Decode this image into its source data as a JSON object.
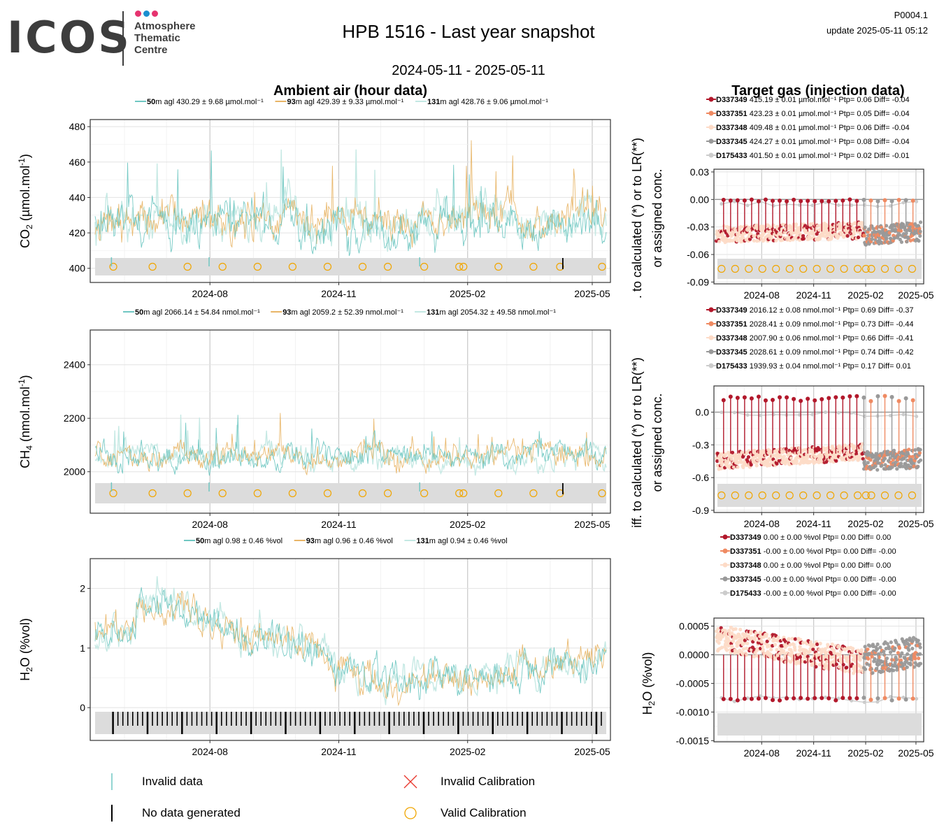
{
  "header": {
    "logo": "ICOS",
    "logo_sub": [
      "Atmosphere",
      "Thematic",
      "Centre"
    ],
    "logo_dot_colors": [
      "#e6336f",
      "#1b8fd0",
      "#e6336f"
    ],
    "title": "HPB 1516 - Last year snapshot",
    "date_range": "2024-05-11 - 2025-05-11",
    "code": "P0004.1",
    "update": "update  2025-05-11 05:12"
  },
  "colors": {
    "50m": "#6fc7c2",
    "93m": "#e8b567",
    "131m": "#c3e8e3",
    "valid_cal": "#f0a500",
    "invalid_cal": "#e8372d",
    "D337349": "#b2182b",
    "D337351": "#ef8a62",
    "D337348": "#fddbc7",
    "D337345": "#999999",
    "D175433": "#cccccc"
  },
  "sections": {
    "ambient_title": "Ambient air (hour data)",
    "target_title": "Target gas (injection data)"
  },
  "legend_bottom": {
    "invalid_data": "Invalid data",
    "no_data": "No data generated",
    "invalid_cal": "Invalid Calibration",
    "valid_cal": "Valid Calibration"
  },
  "chart_data": [
    {
      "type": "line",
      "id": "co2-ambient",
      "ylabel": "CO2 (µmol.mol-1)",
      "ylim": [
        392,
        484
      ],
      "yticks": [
        400,
        420,
        440,
        460,
        480
      ],
      "xlim": [
        "2024-05-11",
        "2025-05-11"
      ],
      "xticks": [
        "2024-08",
        "2024-11",
        "2025-02",
        "2025-05"
      ],
      "base": 427,
      "amp": 9.5,
      "legend": [
        {
          "height": "50",
          "text": "m agl 430.29 ± 9.68 µmol.mol⁻¹"
        },
        {
          "height": "93",
          "text": "m agl 429.39 ± 9.33 µmol.mol⁻¹"
        },
        {
          "height": "131",
          "text": "m agl 428.76 ± 9.06 µmol.mol⁻¹"
        }
      ],
      "calibrations": [
        "2024-05-24",
        "2024-06-21",
        "2024-07-16",
        "2024-08-10",
        "2024-09-04",
        "2024-09-29",
        "2024-10-24",
        "2024-11-18",
        "2024-12-06",
        "2025-01-01",
        "2025-01-26",
        "2025-01-29",
        "2025-02-23",
        "2025-03-20",
        "2025-04-08",
        "2025-05-08"
      ]
    },
    {
      "type": "line",
      "id": "ch4-ambient",
      "ylabel": "CH4 (nmol.mol-1)",
      "ylim": [
        1845,
        2530
      ],
      "yticks": [
        2000,
        2200,
        2400
      ],
      "xlim": [
        "2024-05-11",
        "2025-05-11"
      ],
      "xticks": [
        "2024-08",
        "2024-11",
        "2025-02",
        "2025-05"
      ],
      "base": 2060,
      "amp": 40,
      "legend": [
        {
          "height": "50",
          "text": "m agl 2066.14 ± 54.84 nmol.mol⁻¹"
        },
        {
          "height": "93",
          "text": "m agl 2059.2 ± 52.39 nmol.mol⁻¹"
        },
        {
          "height": "131",
          "text": "m agl 2054.32 ± 49.58 nmol.mol⁻¹"
        }
      ],
      "calibrations": [
        "2024-05-24",
        "2024-06-21",
        "2024-07-16",
        "2024-08-10",
        "2024-09-04",
        "2024-09-29",
        "2024-10-24",
        "2024-11-18",
        "2024-12-06",
        "2025-01-01",
        "2025-01-26",
        "2025-01-29",
        "2025-02-23",
        "2025-03-20",
        "2025-04-08",
        "2025-05-08"
      ]
    },
    {
      "type": "line",
      "id": "h2o-ambient",
      "ylabel": "H2O (%vol)",
      "ylim": [
        -0.55,
        2.5
      ],
      "yticks": [
        0,
        1,
        2
      ],
      "xlim": [
        "2024-05-11",
        "2025-05-11"
      ],
      "xticks": [
        "2024-08",
        "2024-11",
        "2025-02",
        "2025-05"
      ],
      "legend": [
        {
          "height": "50",
          "text": "m agl 0.98 ± 0.46 %vol"
        },
        {
          "height": "93",
          "text": "m agl 0.96 ± 0.46 %vol"
        },
        {
          "height": "131",
          "text": "m agl 0.94 ± 0.46 %vol"
        }
      ]
    },
    {
      "type": "scatter",
      "id": "co2-target",
      "ylabel": ". to calculated (*) or to LR(**)\nor assigned conc.",
      "ylim": [
        -0.092,
        0.033
      ],
      "yticks": [
        "0.03",
        "0.00",
        "-0.03",
        "-0.06",
        "-0.09"
      ],
      "xticks": [
        "2024-08",
        "2024-11",
        "2025-02",
        "2025-05"
      ],
      "level": -0.035,
      "sd": 0.006,
      "legend": [
        {
          "name": "D337349",
          "text": " 415.19 ± 0.01 µmol.mol⁻¹ Ptp= 0.06 Diff= -0.04"
        },
        {
          "name": "D337351",
          "text": " 423.23 ± 0.01 µmol.mol⁻¹ Ptp= 0.05 Diff= -0.04"
        },
        {
          "name": "D337348",
          "text": " 409.48 ± 0.01 µmol.mol⁻¹ Ptp= 0.06 Diff= -0.04"
        },
        {
          "name": "D337345",
          "text": " 424.27 ± 0.01 µmol.mol⁻¹ Ptp= 0.08 Diff= -0.04"
        },
        {
          "name": "D175433",
          "text": " 401.50 ± 0.01 µmol.mol⁻¹ Ptp= 0.02 Diff= -0.01"
        }
      ]
    },
    {
      "type": "scatter",
      "id": "ch4-target",
      "ylabel": "iff. to calculated (*) or to LR(**)\nor assigned conc.",
      "ylim": [
        -0.92,
        0.24
      ],
      "yticks": [
        "0.0",
        "-0.3",
        "-0.6",
        "-0.9"
      ],
      "xticks": [
        "2024-08",
        "2024-11",
        "2025-02",
        "2025-05"
      ],
      "level": -0.4,
      "sd": 0.05,
      "legend": [
        {
          "name": "D337349",
          "text": " 2016.12 ± 0.08 nmol.mol⁻¹ Ptp= 0.69 Diff= -0.37"
        },
        {
          "name": "D337351",
          "text": " 2028.41 ± 0.09 nmol.mol⁻¹ Ptp= 0.73 Diff= -0.44"
        },
        {
          "name": "D337348",
          "text": " 2007.90 ± 0.06 nmol.mol⁻¹ Ptp= 0.66 Diff= -0.41"
        },
        {
          "name": "D337345",
          "text": " 2028.61 ± 0.09 nmol.mol⁻¹ Ptp= 0.74 Diff= -0.42"
        },
        {
          "name": "D175433",
          "text": " 1939.93 ± 0.04 nmol.mol⁻¹ Ptp= 0.17 Diff= 0.01"
        }
      ]
    },
    {
      "type": "scatter",
      "id": "h2o-target",
      "ylabel": "H2O (%vol)",
      "ylim": [
        -0.00152,
        0.00064
      ],
      "yticks": [
        "0.0005",
        "0.0000",
        "-0.0005",
        "-0.0010",
        "-0.0015"
      ],
      "xticks": [
        "2024-08",
        "2024-11",
        "2025-02",
        "2025-05"
      ],
      "legend": [
        {
          "name": "D337349",
          "text": " 0.00 ± 0.00 %vol Ptp= 0.00 Diff= 0.00"
        },
        {
          "name": "D337351",
          "text": " -0.00 ± 0.00 %vol Ptp= 0.00 Diff= -0.00"
        },
        {
          "name": "D337348",
          "text": " 0.00 ± 0.00 %vol Ptp= 0.00 Diff= 0.00"
        },
        {
          "name": "D337345",
          "text": " -0.00 ± 0.00 %vol Ptp= 0.00 Diff= -0.00"
        },
        {
          "name": "D175433",
          "text": " -0.00 ± 0.00 %vol Ptp= 0.00 Diff= -0.00"
        }
      ]
    }
  ]
}
